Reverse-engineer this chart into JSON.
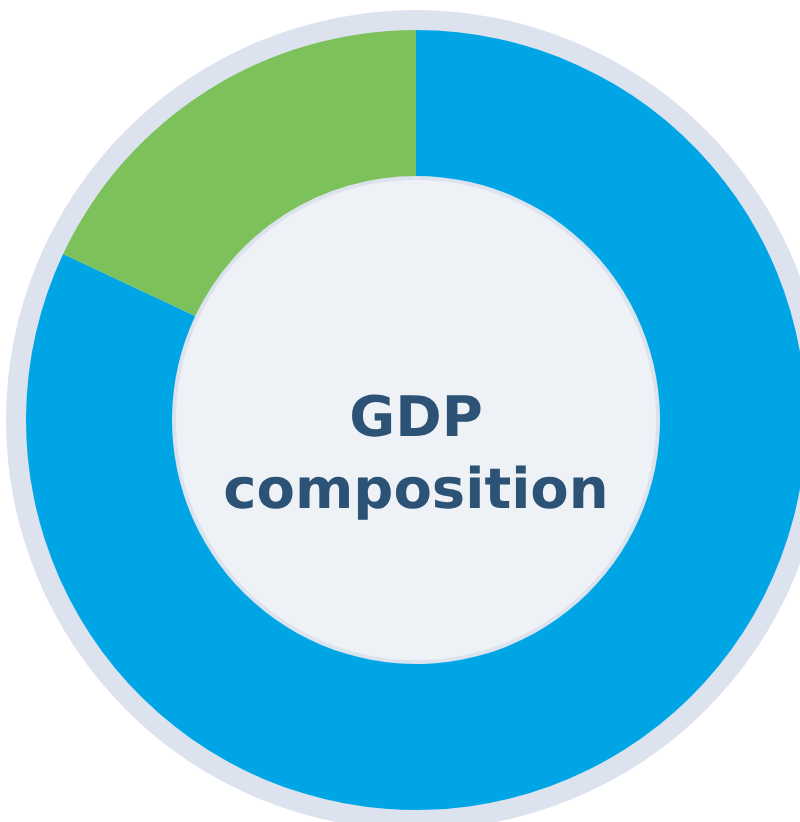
{
  "chart_data": {
    "type": "donut",
    "title": "GDP composition",
    "categories": [
      null,
      null
    ],
    "values": [
      82,
      18
    ],
    "colors": [
      "#00a5e6",
      "#7cc15a"
    ]
  }
}
